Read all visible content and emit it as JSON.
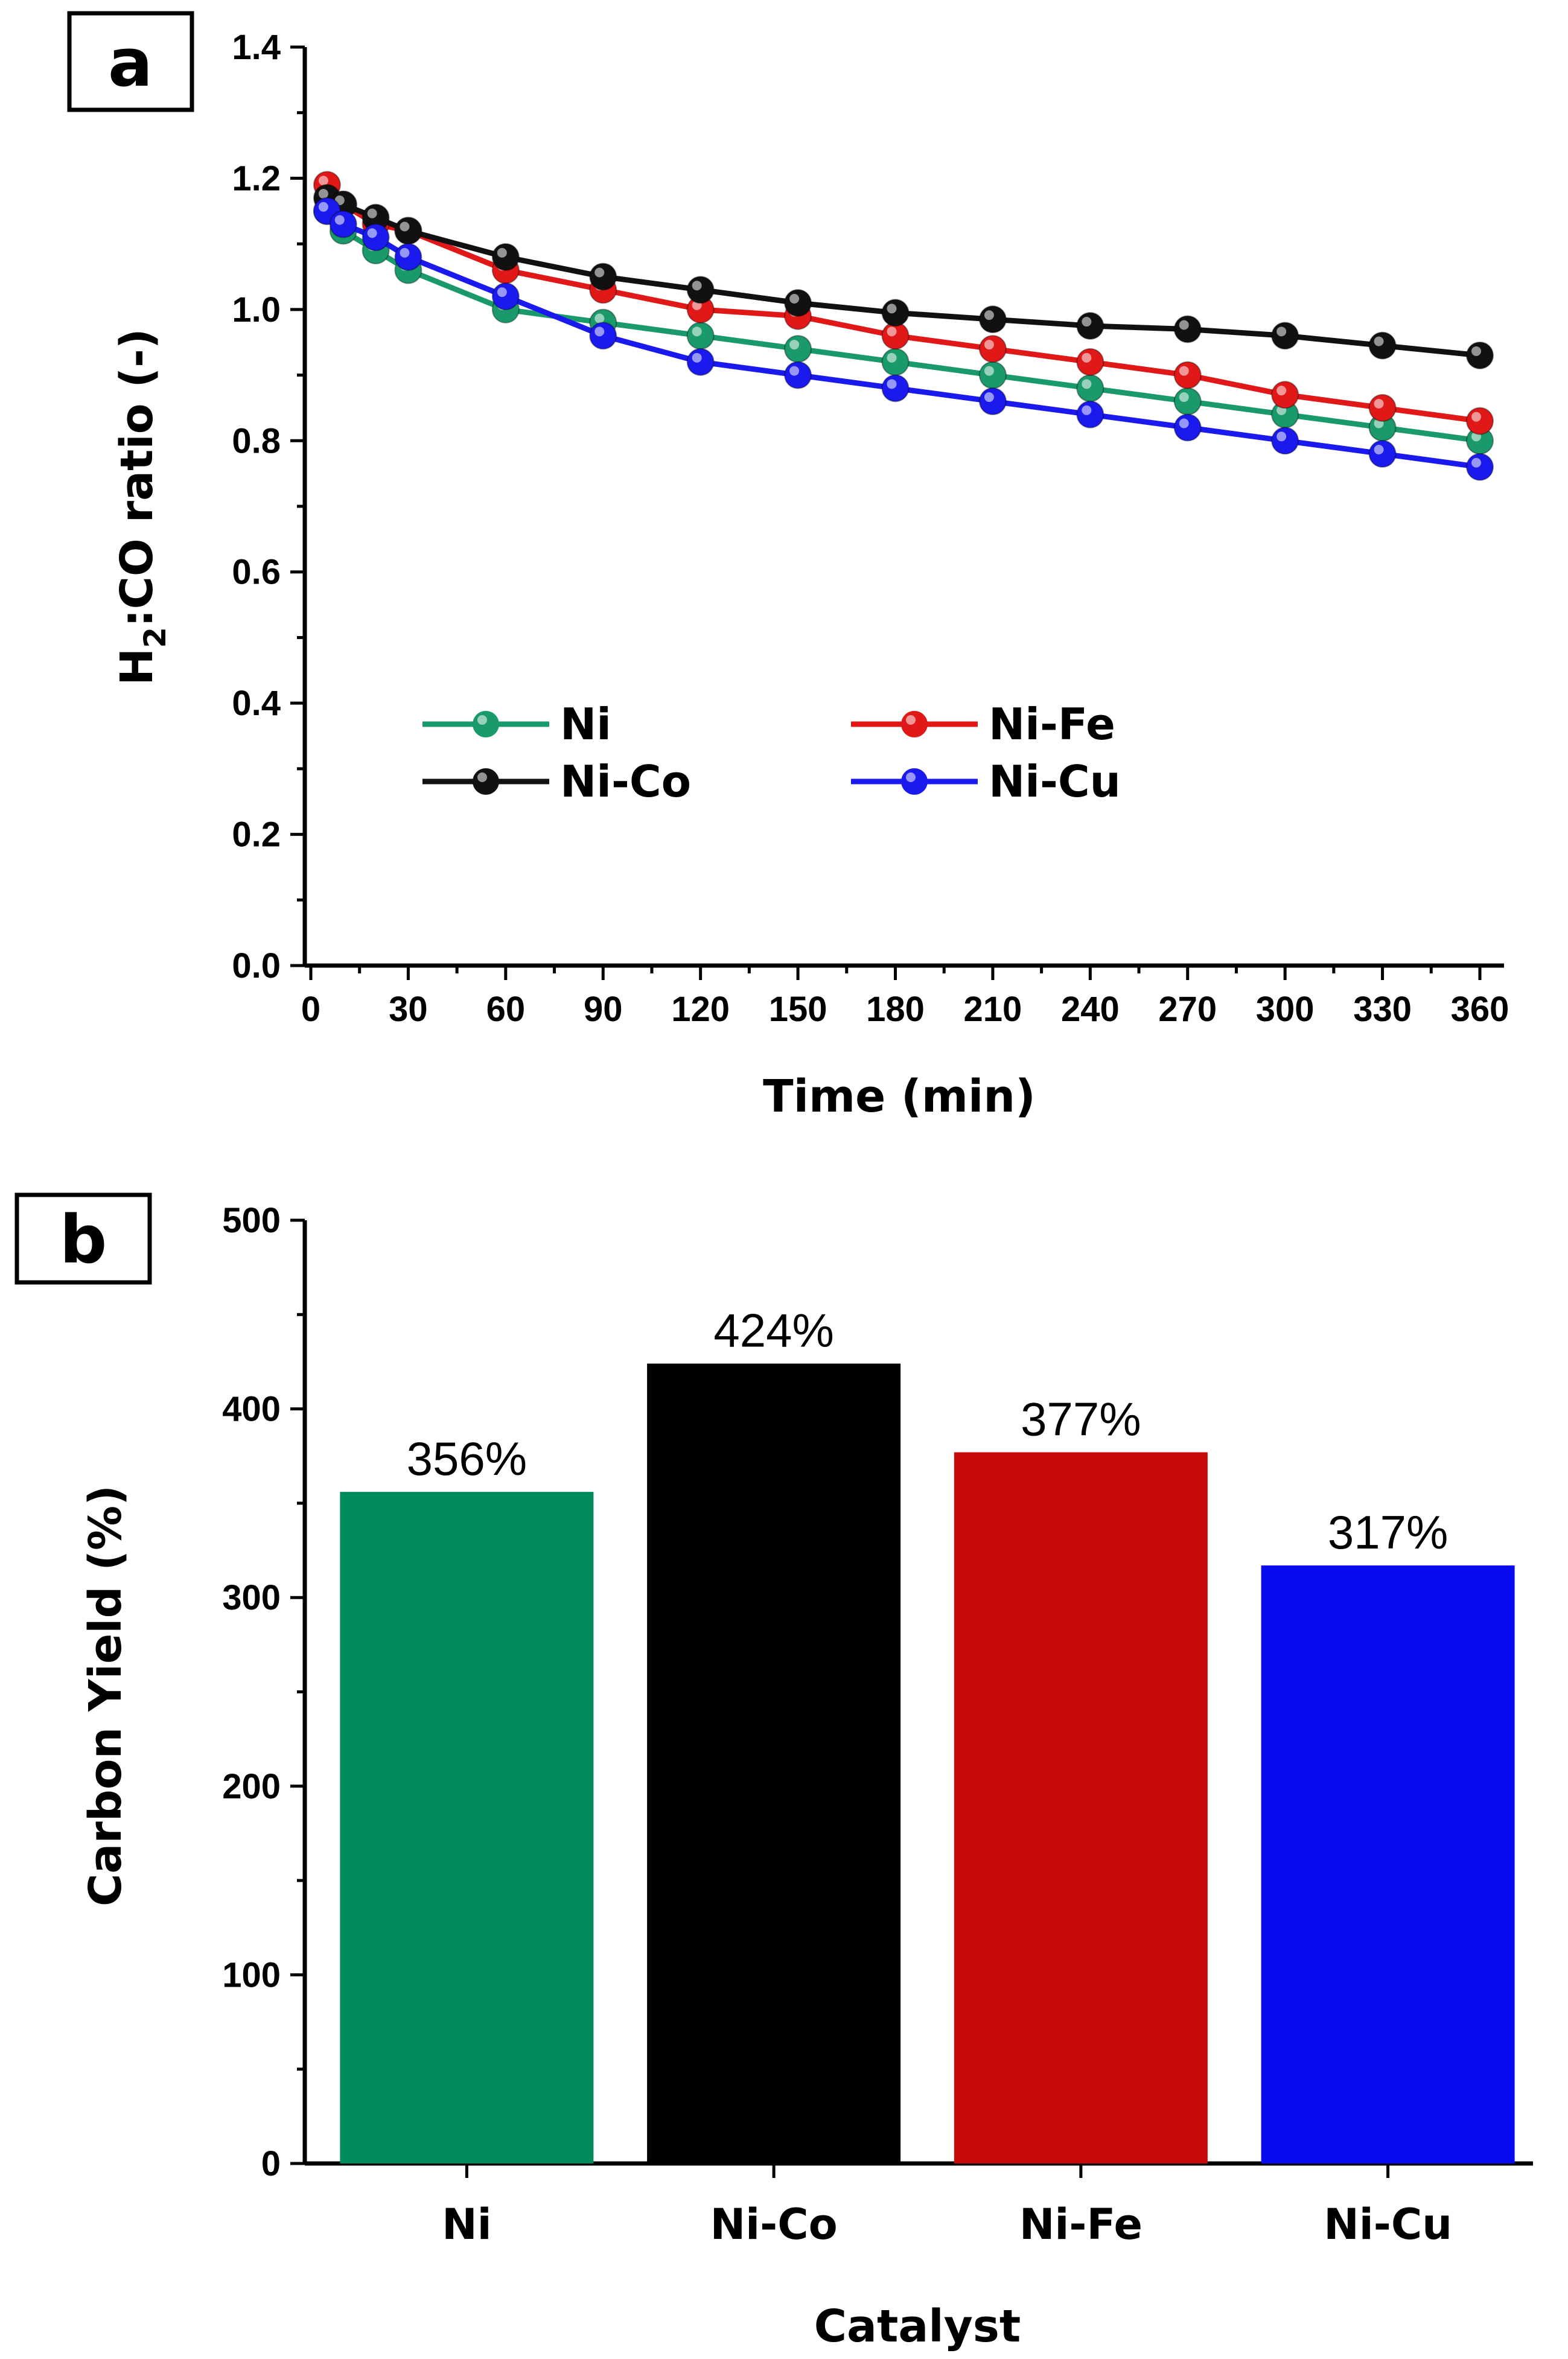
{
  "chart_data": [
    {
      "panel": "a",
      "type": "line",
      "xlabel": "Time (min)",
      "ylabel_main": "H",
      "ylabel_sub": "2",
      "ylabel_rest": ":CO ratio (-)",
      "xlim": [
        0,
        365
      ],
      "ylim": [
        0.0,
        1.4
      ],
      "x_ticks": [
        0,
        30,
        60,
        90,
        120,
        150,
        180,
        210,
        240,
        270,
        300,
        330,
        360
      ],
      "y_ticks": [
        "0.0",
        "0.2",
        "0.4",
        "0.6",
        "0.8",
        "1.0",
        "1.2",
        "1.4"
      ],
      "legend_position": "center-left",
      "series": [
        {
          "name": "Ni",
          "color": "#1a9a6a",
          "x": [
            5,
            10,
            20,
            30,
            60,
            90,
            120,
            150,
            180,
            210,
            240,
            270,
            300,
            330,
            360
          ],
          "y": [
            1.15,
            1.12,
            1.09,
            1.06,
            1.0,
            0.98,
            0.96,
            0.94,
            0.92,
            0.9,
            0.88,
            0.86,
            0.84,
            0.82,
            0.8
          ]
        },
        {
          "name": "Ni-Fe",
          "color": "#e01818",
          "x": [
            5,
            10,
            20,
            30,
            60,
            90,
            120,
            150,
            180,
            210,
            240,
            270,
            300,
            330,
            360
          ],
          "y": [
            1.19,
            1.16,
            1.13,
            1.12,
            1.06,
            1.03,
            1.0,
            0.99,
            0.96,
            0.94,
            0.92,
            0.9,
            0.87,
            0.85,
            0.83
          ]
        },
        {
          "name": "Ni-Co",
          "color": "#111111",
          "x": [
            5,
            10,
            20,
            30,
            60,
            90,
            120,
            150,
            180,
            210,
            240,
            270,
            300,
            330,
            360
          ],
          "y": [
            1.17,
            1.16,
            1.14,
            1.12,
            1.08,
            1.05,
            1.03,
            1.01,
            0.995,
            0.985,
            0.975,
            0.97,
            0.96,
            0.945,
            0.93
          ]
        },
        {
          "name": "Ni-Cu",
          "color": "#1a1aee",
          "x": [
            5,
            10,
            20,
            30,
            60,
            90,
            120,
            150,
            180,
            210,
            240,
            270,
            300,
            330,
            360
          ],
          "y": [
            1.15,
            1.13,
            1.11,
            1.08,
            1.02,
            0.96,
            0.92,
            0.9,
            0.88,
            0.86,
            0.84,
            0.82,
            0.8,
            0.78,
            0.76
          ]
        }
      ]
    },
    {
      "panel": "b",
      "type": "bar",
      "xlabel": "Catalyst",
      "ylabel": "Carbon Yield (%)",
      "ylim": [
        0,
        500
      ],
      "y_ticks": [
        "0",
        "100",
        "200",
        "300",
        "400",
        "500"
      ],
      "categories": [
        "Ni",
        "Ni-Co",
        "Ni-Fe",
        "Ni-Cu"
      ],
      "values": [
        356,
        424,
        377,
        317
      ],
      "value_labels": [
        "356%",
        "424%",
        "377%",
        "317%"
      ],
      "colors": [
        "#018a5c",
        "#000000",
        "#c80a0a",
        "#0a0aee"
      ]
    }
  ]
}
